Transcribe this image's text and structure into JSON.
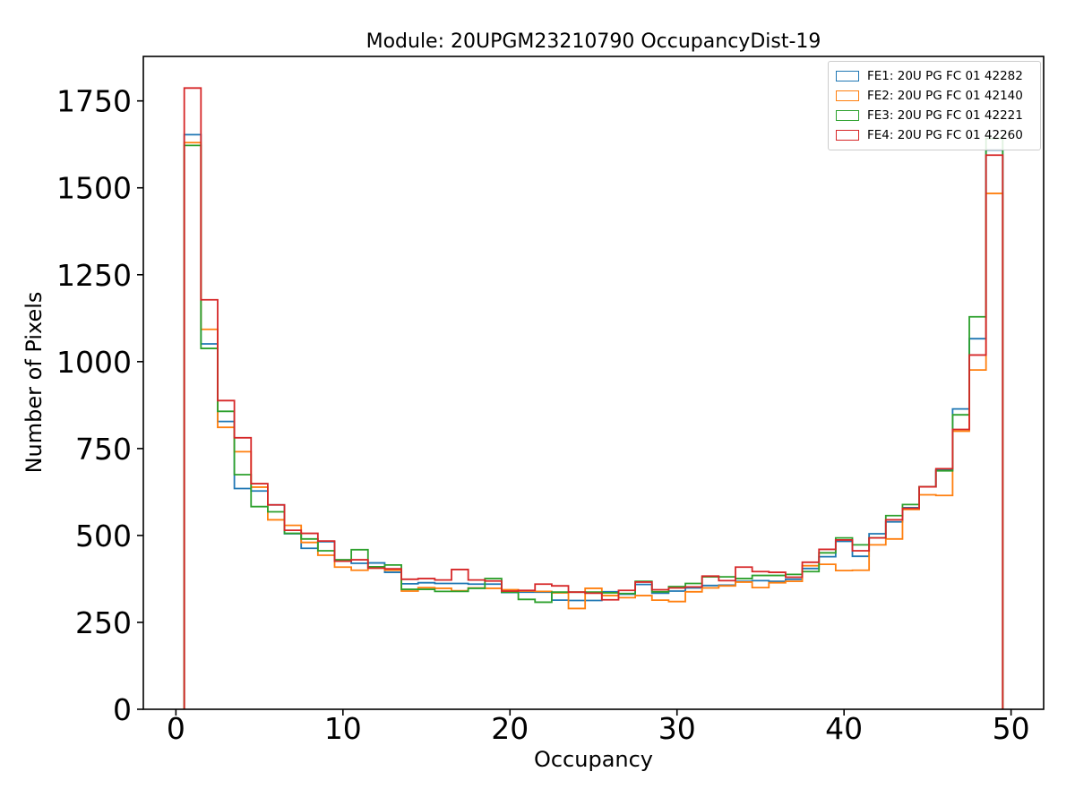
{
  "chart_data": {
    "type": "histogram-step",
    "title": "Module: 20UPGM23210790 OccupancyDist-19",
    "xlabel": "Occupancy",
    "ylabel": "Number of Pixels",
    "bin_start": 0.5,
    "bin_width": 1,
    "n_bins": 49,
    "xlim": [
      -1.95,
      51.95
    ],
    "ylim": [
      0,
      1878
    ],
    "xticks": [
      0,
      10,
      20,
      30,
      40,
      50
    ],
    "yticks": [
      0,
      250,
      500,
      750,
      1000,
      1250,
      1500,
      1750
    ],
    "grid": false,
    "legend_position": "upper right",
    "series": [
      {
        "name": "FE1: 20U PG FC 01 42282",
        "color": "#1f77b4",
        "values": [
          1653,
          1051,
          828,
          635,
          628,
          588,
          505,
          463,
          482,
          426,
          420,
          421,
          394,
          361,
          364,
          362,
          362,
          360,
          360,
          336,
          337,
          337,
          314,
          313,
          313,
          338,
          331,
          359,
          334,
          340,
          349,
          356,
          357,
          368,
          370,
          368,
          374,
          405,
          439,
          483,
          440,
          505,
          539,
          580,
          640,
          688,
          864,
          1066,
          1609
        ]
      },
      {
        "name": "FE2: 20U PG FC 01 42140",
        "color": "#ff7f0e",
        "values": [
          1630,
          1093,
          811,
          741,
          639,
          545,
          529,
          480,
          443,
          409,
          400,
          406,
          400,
          340,
          350,
          348,
          341,
          349,
          348,
          344,
          340,
          339,
          335,
          290,
          348,
          327,
          321,
          327,
          314,
          310,
          338,
          349,
          355,
          366,
          350,
          364,
          368,
          413,
          417,
          399,
          400,
          473,
          490,
          575,
          617,
          615,
          800,
          976,
          1484
        ]
      },
      {
        "name": "FE3: 20U PG FC 01 42221",
        "color": "#2ca02c",
        "values": [
          1622,
          1038,
          857,
          675,
          583,
          568,
          506,
          490,
          456,
          430,
          459,
          410,
          415,
          345,
          345,
          339,
          339,
          348,
          376,
          337,
          316,
          308,
          337,
          337,
          337,
          335,
          333,
          368,
          338,
          353,
          362,
          381,
          381,
          376,
          385,
          385,
          388,
          396,
          450,
          493,
          473,
          493,
          557,
          589,
          640,
          686,
          847,
          1129,
          1642
        ]
      },
      {
        "name": "FE4: 20U PG FC 01 42260",
        "color": "#d62728",
        "values": [
          1787,
          1178,
          888,
          781,
          649,
          588,
          515,
          506,
          484,
          426,
          430,
          406,
          404,
          374,
          376,
          372,
          402,
          372,
          369,
          340,
          342,
          360,
          355,
          337,
          334,
          315,
          342,
          366,
          344,
          349,
          352,
          383,
          370,
          409,
          396,
          394,
          380,
          423,
          460,
          487,
          456,
          493,
          545,
          578,
          640,
          692,
          805,
          1019,
          1594
        ]
      }
    ]
  }
}
